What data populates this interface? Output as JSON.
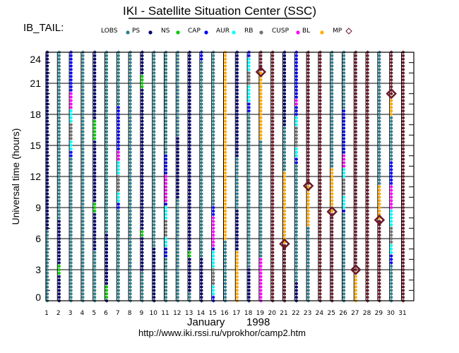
{
  "title": "IKI - Satellite Situation Center (SSC)",
  "mission_label": "IB_TAIL:",
  "legend": [
    {
      "label": "LOBS",
      "code": "LOBS",
      "color": "#2e7f8c"
    },
    {
      "label": "PS",
      "code": "PS",
      "color": "#00006e"
    },
    {
      "label": "NS",
      "code": "NS",
      "color": "#00cc00"
    },
    {
      "label": "CAP",
      "code": "CAP",
      "color": "#0000ff"
    },
    {
      "label": "AUR",
      "code": "AUR",
      "color": "#00ffff"
    },
    {
      "label": "RB",
      "code": "RB",
      "color": "#707070"
    },
    {
      "label": "CUSP",
      "code": "CUSP",
      "color": "#ff00ff"
    },
    {
      "label": "BL",
      "code": "BL",
      "color": "#ffaa00"
    },
    {
      "label": "MP",
      "code": "MP",
      "color": "#6b1a2a",
      "marker": "diamond"
    }
  ],
  "outside_color": "#6b1a2a",
  "footer": {
    "month": "January",
    "year": "1998",
    "url": "http://www.iki.rssi.ru/vprokhor/camp2.htm"
  },
  "chart_data": {
    "type": "timeline",
    "ylabel": "Universal time (hours)",
    "ylim": [
      0,
      24
    ],
    "yticks": [
      "0",
      "3",
      "6",
      "9",
      "12",
      "15",
      "18",
      "21",
      "24"
    ],
    "xticks": [
      "1",
      "2",
      "3",
      "4",
      "5",
      "6",
      "7",
      "8",
      "9",
      "10",
      "11",
      "12",
      "13",
      "14",
      "15",
      "16",
      "17",
      "18",
      "19",
      "20",
      "21",
      "22",
      "23",
      "24",
      "25",
      "26",
      "27",
      "28",
      "29",
      "30",
      "31"
    ],
    "grid": true,
    "days": [
      {
        "day": 1,
        "segments": [
          [
            0,
            7,
            "LOBS"
          ],
          [
            7,
            24,
            "PS"
          ]
        ]
      },
      {
        "day": 2,
        "segments": [
          [
            0,
            2.6,
            "PS"
          ],
          [
            2.6,
            3.5,
            "NS"
          ],
          [
            3.5,
            7.8,
            "PS"
          ],
          [
            7.8,
            24,
            "LOBS"
          ]
        ]
      },
      {
        "day": 3,
        "segments": [
          [
            0,
            13.9,
            "LOBS"
          ],
          [
            13.9,
            14.4,
            "CAP"
          ],
          [
            14.4,
            15.5,
            "AUR"
          ],
          [
            15.5,
            17.2,
            "RB"
          ],
          [
            17.2,
            18.6,
            "AUR"
          ],
          [
            18.6,
            20.2,
            "CUSP"
          ],
          [
            20.2,
            24,
            "CAP"
          ]
        ]
      },
      {
        "day": 4,
        "segments": [
          [
            0,
            24,
            "LOBS"
          ]
        ]
      },
      {
        "day": 5,
        "segments": [
          [
            0,
            5,
            "LOBS"
          ],
          [
            5,
            8.5,
            "PS"
          ],
          [
            8.5,
            9.4,
            "NS"
          ],
          [
            9.4,
            15.5,
            "PS"
          ],
          [
            15.5,
            17.4,
            "NS"
          ],
          [
            17.4,
            24,
            "PS"
          ]
        ]
      },
      {
        "day": 6,
        "segments": [
          [
            0,
            0.3,
            "PS"
          ],
          [
            0.3,
            1.4,
            "NS"
          ],
          [
            1.4,
            6.4,
            "PS"
          ],
          [
            6.4,
            24,
            "LOBS"
          ]
        ]
      },
      {
        "day": 7,
        "segments": [
          [
            0,
            9,
            "LOBS"
          ],
          [
            9,
            9.4,
            "CAP"
          ],
          [
            9.4,
            10.6,
            "AUR"
          ],
          [
            10.6,
            12.2,
            "RB"
          ],
          [
            12.2,
            13.5,
            "AUR"
          ],
          [
            13.5,
            14.4,
            "CUSP"
          ],
          [
            14.4,
            18.8,
            "CAP"
          ],
          [
            18.8,
            24,
            "LOBS"
          ]
        ]
      },
      {
        "day": 8,
        "segments": [
          [
            0,
            24,
            "LOBS"
          ]
        ]
      },
      {
        "day": 9,
        "segments": [
          [
            0,
            3,
            "LOBS"
          ],
          [
            3,
            6.2,
            "PS"
          ],
          [
            6.2,
            6.8,
            "NS"
          ],
          [
            6.8,
            20.6,
            "PS"
          ],
          [
            20.6,
            21.8,
            "NS"
          ],
          [
            21.8,
            24,
            "PS"
          ]
        ]
      },
      {
        "day": 10,
        "segments": [
          [
            0,
            5.1,
            "PS"
          ],
          [
            5.1,
            24,
            "LOBS"
          ]
        ]
      },
      {
        "day": 11,
        "segments": [
          [
            0,
            4.3,
            "LOBS"
          ],
          [
            4.3,
            5.1,
            "CAP"
          ],
          [
            5.1,
            6.2,
            "AUR"
          ],
          [
            6.2,
            7.8,
            "RB"
          ],
          [
            7.8,
            9.2,
            "AUR"
          ],
          [
            9.2,
            9.6,
            "CAP"
          ],
          [
            9.6,
            12.2,
            "CUSP"
          ],
          [
            12.2,
            14.1,
            "CAP"
          ],
          [
            14.1,
            24,
            "LOBS"
          ]
        ]
      },
      {
        "day": 12,
        "segments": [
          [
            0,
            9.8,
            "LOBS"
          ],
          [
            9.8,
            15.8,
            "PS"
          ],
          [
            15.8,
            24,
            "LOBS"
          ]
        ]
      },
      {
        "day": 13,
        "segments": [
          [
            0,
            0.7,
            "LOBS"
          ],
          [
            0.7,
            4.2,
            "PS"
          ],
          [
            4.2,
            4.8,
            "NS"
          ],
          [
            4.8,
            24,
            "PS"
          ]
        ]
      },
      {
        "day": 14,
        "segments": [
          [
            0,
            4.2,
            "PS"
          ],
          [
            4.2,
            23.2,
            "LOBS"
          ],
          [
            23.2,
            24,
            "CAP"
          ]
        ]
      },
      {
        "day": 15,
        "segments": [
          [
            0,
            0.5,
            "CAP"
          ],
          [
            0.5,
            1.6,
            "AUR"
          ],
          [
            1.6,
            3.1,
            "RB"
          ],
          [
            3.1,
            4.8,
            "AUR"
          ],
          [
            4.8,
            5.3,
            "CAP"
          ],
          [
            5.3,
            8.3,
            "CUSP"
          ],
          [
            8.3,
            9.2,
            "CAP"
          ],
          [
            9.2,
            24,
            "LOBS"
          ]
        ]
      },
      {
        "day": 16,
        "segments": [
          [
            0,
            6,
            "LOBS"
          ],
          [
            6,
            24,
            "BL"
          ]
        ]
      },
      {
        "day": 17,
        "segments": [
          [
            0,
            4.8,
            "BL"
          ],
          [
            4.8,
            8.7,
            "PS"
          ],
          [
            8.7,
            13.8,
            "LOBS"
          ],
          [
            13.8,
            24,
            "PS"
          ]
        ]
      },
      {
        "day": 18,
        "segments": [
          [
            0,
            3.1,
            "PS"
          ],
          [
            3.1,
            18.2,
            "LOBS"
          ],
          [
            18.2,
            19.1,
            "CAP"
          ],
          [
            19.1,
            20.8,
            "AUR"
          ],
          [
            20.8,
            22.1,
            "RB"
          ],
          [
            22.1,
            23.4,
            "AUR"
          ],
          [
            23.4,
            24,
            "CAP"
          ]
        ]
      },
      {
        "day": 19,
        "segments": [
          [
            0,
            4.2,
            "CUSP"
          ],
          [
            4.2,
            15.6,
            "LOBS"
          ],
          [
            15.6,
            22.1,
            "BL"
          ],
          [
            22.1,
            24,
            "out"
          ]
        ],
        "mp": [
          22.1
        ]
      },
      {
        "day": 20,
        "segments": [
          [
            0,
            24,
            "out"
          ]
        ]
      },
      {
        "day": 21,
        "segments": [
          [
            0,
            5.5,
            "out"
          ],
          [
            5.5,
            12.4,
            "BL"
          ],
          [
            12.4,
            16.7,
            "LOBS"
          ],
          [
            16.7,
            24,
            "PS"
          ]
        ],
        "mp": [
          5.5
        ]
      },
      {
        "day": 22,
        "segments": [
          [
            0,
            1.8,
            "PS"
          ],
          [
            1.8,
            13.2,
            "LOBS"
          ],
          [
            13.2,
            13.8,
            "CAP"
          ],
          [
            13.8,
            14.9,
            "AUR"
          ],
          [
            14.9,
            16.7,
            "RB"
          ],
          [
            16.7,
            17.8,
            "AUR"
          ],
          [
            17.8,
            18.8,
            "CAP"
          ],
          [
            18.8,
            19.5,
            "CUSP"
          ],
          [
            19.5,
            24,
            "CAP"
          ]
        ]
      },
      {
        "day": 23,
        "segments": [
          [
            0,
            7.2,
            "LOBS"
          ],
          [
            7.2,
            11.1,
            "BL"
          ],
          [
            11.1,
            24,
            "out"
          ]
        ],
        "mp": [
          11.1
        ]
      },
      {
        "day": 24,
        "segments": [
          [
            0,
            24,
            "out"
          ]
        ]
      },
      {
        "day": 25,
        "segments": [
          [
            0,
            8.6,
            "out"
          ],
          [
            8.6,
            12.7,
            "BL"
          ],
          [
            12.7,
            24,
            "LOBS"
          ]
        ],
        "mp": [
          8.6
        ]
      },
      {
        "day": 26,
        "segments": [
          [
            0,
            8.5,
            "LOBS"
          ],
          [
            8.5,
            9,
            "CAP"
          ],
          [
            9,
            10.1,
            "AUR"
          ],
          [
            10.1,
            11.8,
            "RB"
          ],
          [
            11.8,
            12.8,
            "AUR"
          ],
          [
            12.8,
            14.1,
            "CUSP"
          ],
          [
            14.1,
            18.4,
            "CAP"
          ],
          [
            18.4,
            24,
            "LOBS"
          ]
        ]
      },
      {
        "day": 27,
        "segments": [
          [
            0,
            3,
            "BL"
          ],
          [
            3,
            24,
            "out"
          ]
        ],
        "mp": [
          3
        ]
      },
      {
        "day": 28,
        "segments": [
          [
            0,
            24,
            "out"
          ]
        ]
      },
      {
        "day": 29,
        "segments": [
          [
            0,
            7.8,
            "out"
          ],
          [
            7.8,
            11.1,
            "BL"
          ],
          [
            11.1,
            24,
            "LOBS"
          ]
        ],
        "mp": [
          7.8
        ]
      },
      {
        "day": 30,
        "segments": [
          [
            0,
            3.6,
            "LOBS"
          ],
          [
            3.6,
            4.4,
            "CAP"
          ],
          [
            4.4,
            5.5,
            "AUR"
          ],
          [
            5.5,
            7.1,
            "RB"
          ],
          [
            7.1,
            8.8,
            "AUR"
          ],
          [
            8.8,
            11.1,
            "CUSP"
          ],
          [
            11.1,
            13.4,
            "CAP"
          ],
          [
            13.4,
            17.9,
            "LOBS"
          ],
          [
            17.9,
            20,
            "BL"
          ],
          [
            20,
            24,
            "out"
          ]
        ],
        "mp": [
          20
        ]
      },
      {
        "day": 31,
        "segments": [
          [
            0,
            24,
            "out"
          ]
        ]
      }
    ]
  }
}
